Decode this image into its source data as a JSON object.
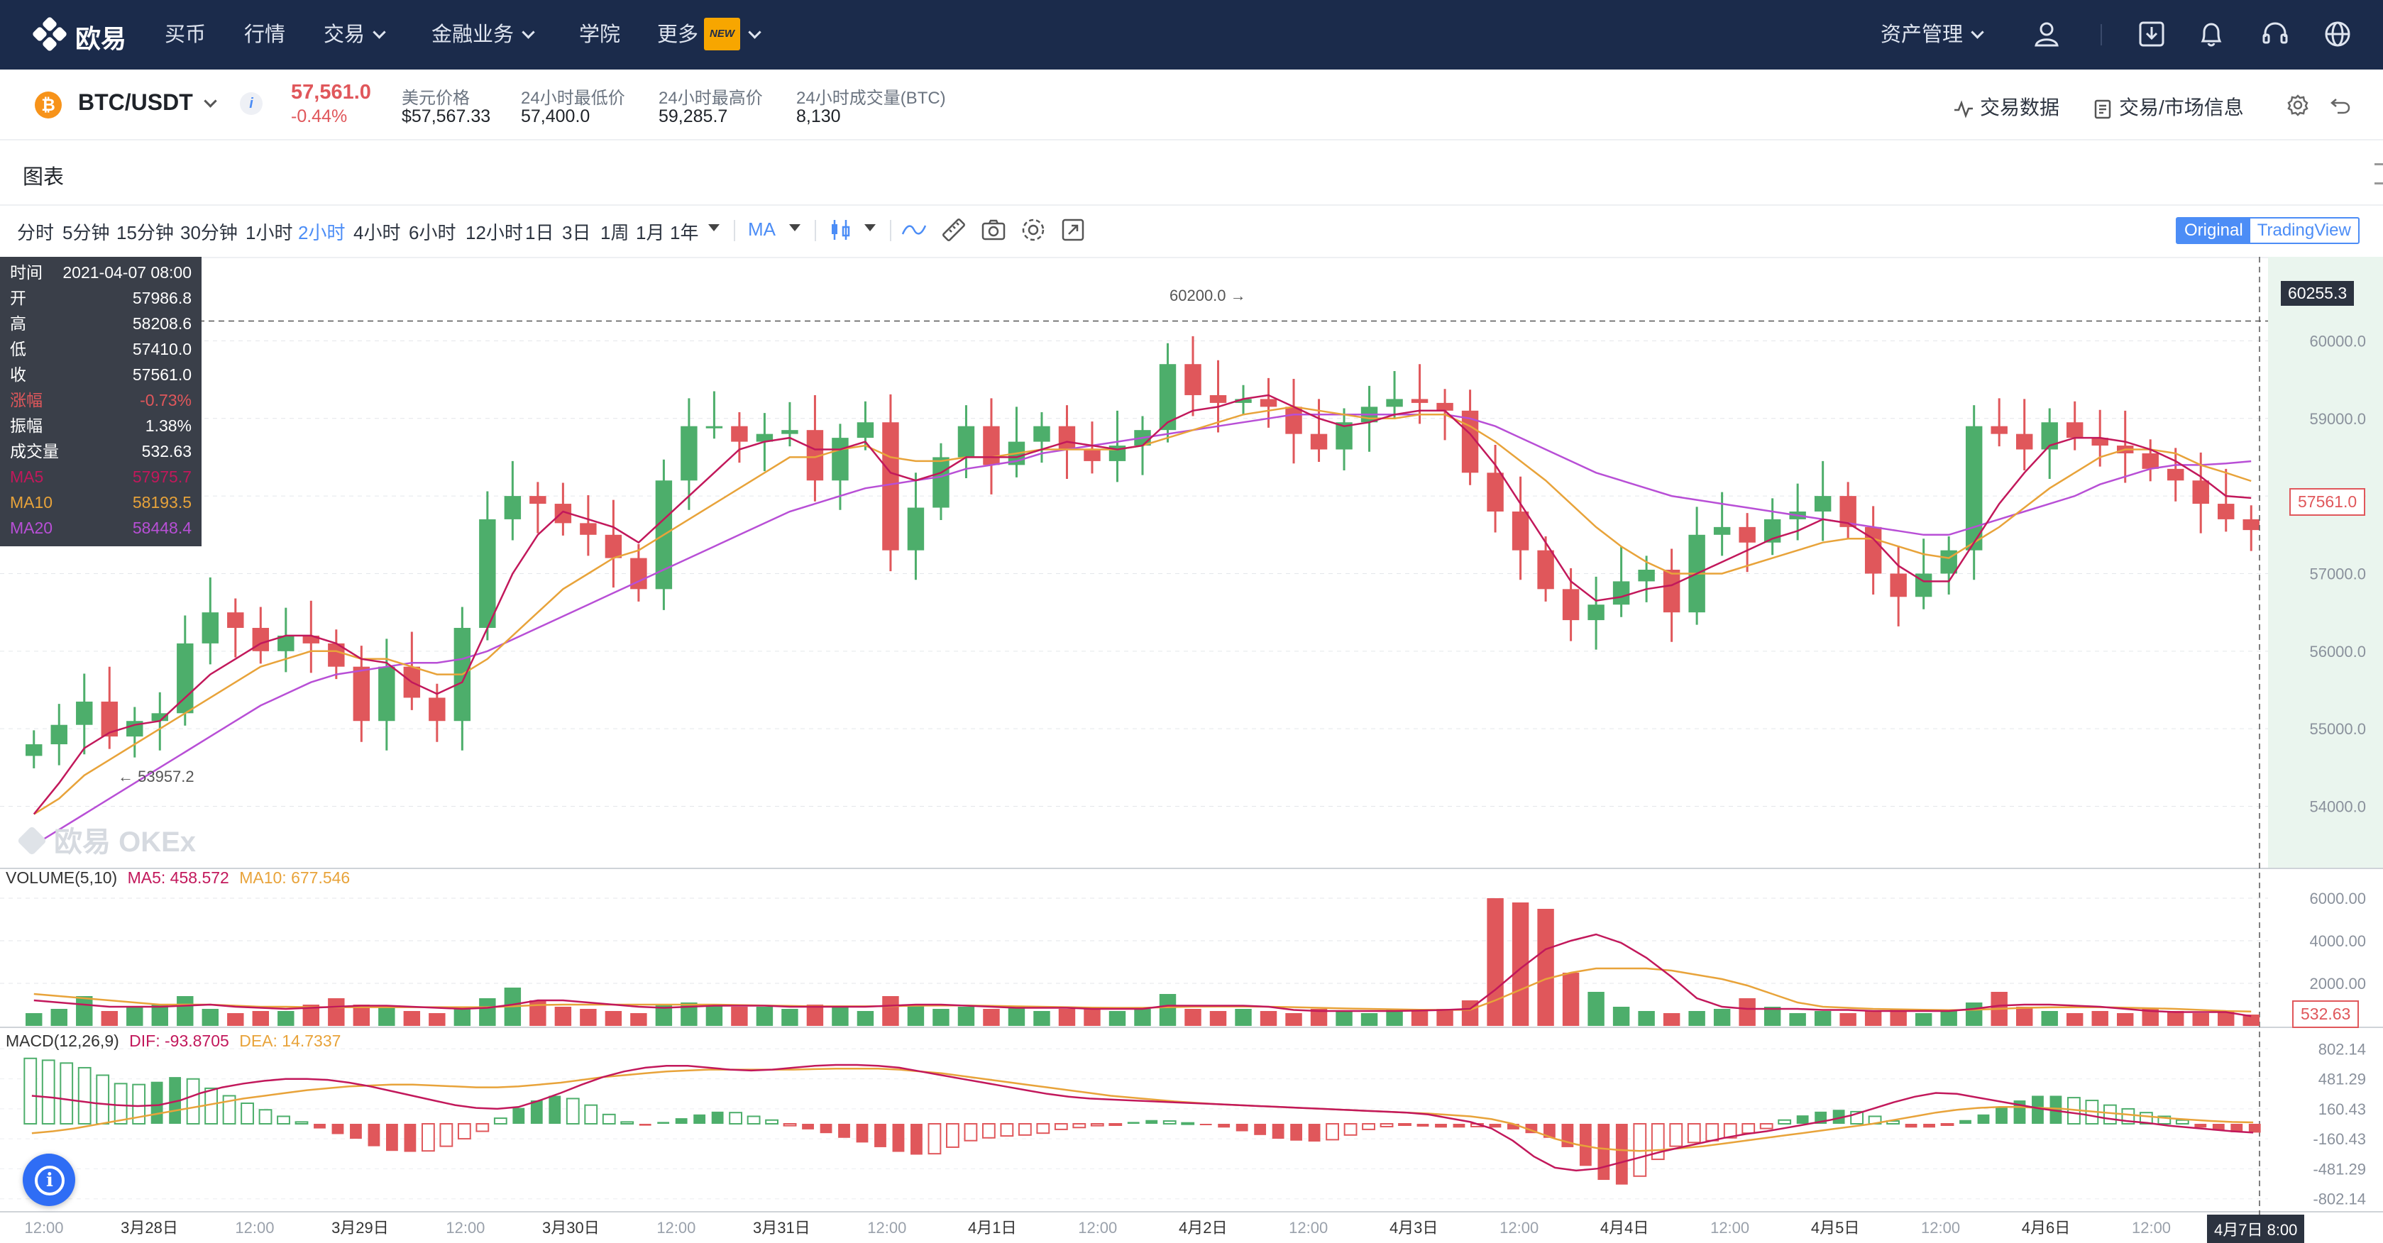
{
  "nav": {
    "logo": "欧易",
    "items": [
      "买币",
      "行情",
      "交易",
      "金融业务",
      "学院",
      "更多"
    ],
    "new_badge": "NEW",
    "asset_mgmt": "资产管理",
    "icons": [
      "user-icon",
      "download-icon",
      "bell-icon",
      "headset-icon",
      "globe-icon"
    ]
  },
  "ticker": {
    "pair": "BTC/USDT",
    "coin_icon": "bitcoin-icon",
    "price": "57,561.0",
    "change": "-0.44%",
    "usd_label": "美元价格",
    "usd_value": "$57,567.33",
    "low_label": "24小时最低价",
    "low_value": "57,400.0",
    "high_label": "24小时最高价",
    "high_value": "59,285.7",
    "vol_label": "24小时成交量(BTC)",
    "vol_value": "8,130",
    "trade_data": "交易数据",
    "market_info": "交易/市场信息"
  },
  "chart_header": {
    "title": "图表"
  },
  "toolbar": {
    "timeframes": [
      "分时",
      "5分钟",
      "15分钟",
      "30分钟",
      "1小时",
      "2小时",
      "4小时",
      "6小时",
      "12小时",
      "1日",
      "3日",
      "1周",
      "1月",
      "1年"
    ],
    "active": "2小时",
    "indicator": "MA",
    "view_original": "Original",
    "view_tv": "TradingView"
  },
  "ohlc": {
    "rows": [
      {
        "k": "时间",
        "v": "2021-04-07 08:00"
      },
      {
        "k": "开",
        "v": "57986.8"
      },
      {
        "k": "高",
        "v": "58208.6"
      },
      {
        "k": "低",
        "v": "57410.0"
      },
      {
        "k": "收",
        "v": "57561.0"
      },
      {
        "k": "涨幅",
        "v": "-0.73%"
      },
      {
        "k": "振幅",
        "v": "1.38%"
      },
      {
        "k": "成交量",
        "v": "532.63"
      },
      {
        "k": "MA5",
        "v": "57975.7"
      },
      {
        "k": "MA10",
        "v": "58193.5"
      },
      {
        "k": "MA20",
        "v": "58448.4"
      }
    ]
  },
  "annotations": {
    "high_marker": "60200.0 →",
    "low_marker": "← 53957.2",
    "watermark": "欧易 OKEx",
    "crosshair_price": "60255.3",
    "last_price": "57561.0",
    "last_volume": "532.63",
    "crosshair_time": "4月7日 8:00"
  },
  "volume_label": {
    "name": "VOLUME(5,10)",
    "ma5": "MA5: 458.572",
    "ma10": "MA10: 677.546"
  },
  "macd_label": {
    "name": "MACD(12,26,9)",
    "dif": "DIF: -93.8705",
    "dea": "DEA: 14.7337"
  },
  "colors": {
    "up": "#4dae6b",
    "down": "#e0575b",
    "ma5": "#c2185b",
    "ma10": "#e8a33a",
    "ma20": "#b84fd6",
    "nav_bg": "#1b2b4b",
    "accent": "#4c8df6"
  },
  "chart_data": [
    {
      "type": "candlestick",
      "x_ticks": [
        "12:00",
        "3月28日",
        "12:00",
        "3月29日",
        "12:00",
        "3月30日",
        "12:00",
        "3月31日",
        "12:00",
        "4月1日",
        "12:00",
        "4月2日",
        "12:00",
        "4月3日",
        "12:00",
        "4月4日",
        "12:00",
        "4月5日",
        "12:00",
        "4月6日",
        "12:00",
        "4月7日"
      ],
      "y_ticks": [
        "60000.0",
        "59000.0",
        "58000.0",
        "57000.0",
        "56000.0",
        "55000.0",
        "54000.0"
      ],
      "ylim": [
        53200,
        60900
      ],
      "close": [
        54800,
        55050,
        55350,
        54900,
        55100,
        55200,
        56100,
        56500,
        56300,
        56000,
        56200,
        56100,
        55800,
        55100,
        55800,
        55400,
        55100,
        56300,
        57700,
        58000,
        57900,
        57650,
        57500,
        57200,
        56800,
        58200,
        58900,
        58900,
        58700,
        58800,
        58850,
        58200,
        58750,
        58950,
        57300,
        57850,
        58500,
        58900,
        58400,
        58700,
        58900,
        58600,
        58450,
        58650,
        58850,
        59700,
        59300,
        59200,
        59250,
        59150,
        58800,
        58600,
        58950,
        59150,
        59250,
        59200,
        59100,
        58300,
        57800,
        57300,
        56800,
        56400,
        56600,
        56900,
        57050,
        56500,
        57500,
        57600,
        57400,
        57700,
        57800,
        58000,
        57600,
        57000,
        56700,
        57000,
        57300,
        58900,
        58800,
        58600,
        58950,
        58750,
        58650,
        58550,
        58350,
        58200,
        57900,
        57700,
        57561
      ],
      "ma5": [
        53900,
        54300,
        54750,
        54950,
        55050,
        55100,
        55400,
        55700,
        55900,
        56100,
        56200,
        56200,
        56100,
        55900,
        55850,
        55600,
        55450,
        55600,
        56300,
        57000,
        57500,
        57800,
        57700,
        57600,
        57400,
        57700,
        58000,
        58300,
        58600,
        58700,
        58750,
        58600,
        58600,
        58700,
        58300,
        58200,
        58300,
        58500,
        58500,
        58500,
        58600,
        58700,
        58650,
        58600,
        58650,
        58950,
        59100,
        59150,
        59250,
        59300,
        59150,
        59000,
        58900,
        58950,
        59050,
        59100,
        59100,
        58800,
        58400,
        57900,
        57400,
        56900,
        56650,
        56700,
        56800,
        56850,
        57000,
        57150,
        57300,
        57450,
        57550,
        57700,
        57650,
        57450,
        57100,
        56900,
        56900,
        57400,
        57900,
        58300,
        58650,
        58750,
        58750,
        58700,
        58600,
        58450,
        58250,
        58000,
        57975
      ],
      "ma10": [
        53900,
        54100,
        54400,
        54600,
        54800,
        55000,
        55200,
        55400,
        55600,
        55800,
        55900,
        56000,
        56000,
        55900,
        55900,
        55800,
        55700,
        55700,
        55900,
        56200,
        56500,
        56800,
        57000,
        57200,
        57300,
        57500,
        57700,
        57900,
        58100,
        58300,
        58500,
        58500,
        58600,
        58650,
        58500,
        58450,
        58450,
        58500,
        58500,
        58550,
        58600,
        58600,
        58600,
        58600,
        58650,
        58750,
        58850,
        58950,
        59050,
        59100,
        59150,
        59100,
        59050,
        59000,
        59000,
        59050,
        59050,
        58900,
        58700,
        58450,
        58200,
        57900,
        57600,
        57350,
        57150,
        57000,
        57000,
        57000,
        57100,
        57200,
        57300,
        57400,
        57450,
        57450,
        57350,
        57250,
        57200,
        57400,
        57600,
        57850,
        58100,
        58300,
        58500,
        58600,
        58600,
        58550,
        58400,
        58300,
        58193
      ],
      "ma20": [
        53500,
        53700,
        53900,
        54100,
        54300,
        54500,
        54700,
        54900,
        55100,
        55300,
        55450,
        55600,
        55700,
        55750,
        55800,
        55850,
        55850,
        55900,
        56000,
        56150,
        56300,
        56450,
        56600,
        56750,
        56900,
        57050,
        57200,
        57350,
        57500,
        57650,
        57800,
        57900,
        58000,
        58100,
        58150,
        58200,
        58250,
        58350,
        58400,
        58450,
        58550,
        58600,
        58650,
        58700,
        58750,
        58800,
        58850,
        58900,
        58950,
        59000,
        59050,
        59050,
        59050,
        59050,
        59050,
        59050,
        59050,
        59000,
        58900,
        58750,
        58600,
        58450,
        58300,
        58200,
        58100,
        58000,
        57950,
        57900,
        57850,
        57800,
        57750,
        57700,
        57650,
        57600,
        57550,
        57500,
        57500,
        57600,
        57700,
        57800,
        57900,
        58000,
        58150,
        58250,
        58350,
        58400,
        58400,
        58420,
        58448
      ]
    },
    {
      "type": "bar",
      "name": "VOLUME",
      "y_ticks": [
        "6000.00",
        "4000.00",
        "2000.00"
      ],
      "ylim": [
        0,
        6600
      ],
      "values": [
        600,
        800,
        1400,
        700,
        900,
        1000,
        1400,
        800,
        600,
        700,
        700,
        1000,
        1300,
        1000,
        900,
        700,
        600,
        900,
        1300,
        1800,
        1200,
        900,
        800,
        700,
        600,
        1000,
        1100,
        1000,
        900,
        900,
        800,
        1000,
        900,
        700,
        1400,
        1000,
        800,
        900,
        800,
        900,
        700,
        800,
        800,
        700,
        800,
        1500,
        800,
        700,
        800,
        700,
        600,
        800,
        700,
        600,
        800,
        700,
        800,
        1200,
        6000,
        5800,
        5500,
        2500,
        1600,
        900,
        700,
        600,
        700,
        800,
        1300,
        900,
        600,
        700,
        600,
        700,
        800,
        600,
        700,
        1100,
        1600,
        900,
        700,
        600,
        700,
        600,
        800,
        700,
        600,
        700,
        533
      ],
      "ma5_values": [
        1200,
        1100,
        1000,
        900,
        900,
        900,
        950,
        1000,
        900,
        850,
        800,
        850,
        900,
        950,
        950,
        900,
        850,
        800,
        850,
        1000,
        1200,
        1200,
        1100,
        1000,
        900,
        850,
        900,
        950,
        950,
        950,
        900,
        900,
        900,
        900,
        950,
        1000,
        1000,
        950,
        900,
        850,
        850,
        850,
        800,
        800,
        800,
        950,
        950,
        950,
        950,
        900,
        750,
        700,
        700,
        700,
        700,
        720,
        750,
        800,
        1700,
        2700,
        3600,
        4000,
        4300,
        3900,
        3200,
        2300,
        1300,
        900,
        800,
        800,
        800,
        750,
        750,
        700,
        700,
        700,
        700,
        800,
        950,
        1000,
        1000,
        950,
        900,
        800,
        700,
        650,
        650,
        650,
        458
      ],
      "ma10_values": [
        1500,
        1400,
        1300,
        1200,
        1100,
        1000,
        1000,
        1000,
        950,
        900,
        900,
        880,
        880,
        880,
        880,
        880,
        880,
        880,
        880,
        920,
        980,
        1000,
        1000,
        1000,
        1000,
        1000,
        1000,
        1000,
        980,
        960,
        940,
        920,
        920,
        920,
        930,
        950,
        960,
        960,
        940,
        920,
        900,
        880,
        860,
        850,
        850,
        880,
        900,
        910,
        910,
        900,
        880,
        850,
        820,
        800,
        780,
        760,
        750,
        760,
        1200,
        1700,
        2200,
        2500,
        2700,
        2700,
        2700,
        2600,
        2400,
        2200,
        1900,
        1500,
        1100,
        900,
        850,
        800,
        780,
        760,
        740,
        760,
        800,
        850,
        870,
        880,
        880,
        860,
        830,
        800,
        750,
        700,
        677
      ]
    },
    {
      "type": "bar",
      "name": "MACD",
      "y_ticks": [
        "802.14",
        "481.29",
        "160.43",
        "-160.43",
        "-481.29",
        "-802.14"
      ],
      "ylim": [
        -850,
        850
      ],
      "hist": [
        700,
        680,
        650,
        600,
        520,
        430,
        420,
        450,
        500,
        480,
        380,
        300,
        220,
        150,
        80,
        20,
        -50,
        -110,
        -160,
        -240,
        -290,
        -300,
        -290,
        -240,
        -160,
        -80,
        60,
        170,
        250,
        300,
        270,
        200,
        100,
        20,
        -20,
        20,
        60,
        100,
        130,
        120,
        80,
        40,
        -20,
        -60,
        -100,
        -150,
        -200,
        -250,
        -300,
        -330,
        -320,
        -250,
        -180,
        -150,
        -130,
        -120,
        -100,
        -60,
        -40,
        -20,
        -10,
        20,
        40,
        30,
        10,
        -10,
        -40,
        -80,
        -120,
        -160,
        -180,
        -190,
        -170,
        -120,
        -60,
        -30,
        -10,
        -30,
        -40,
        -40,
        -30,
        -40,
        -60,
        -100,
        -150,
        -250,
        -450,
        -600,
        -650,
        -560,
        -380,
        -240,
        -200,
        -180,
        -150,
        -100,
        -50,
        40,
        90,
        130,
        150,
        130,
        80,
        30,
        -40,
        -40,
        -10,
        40,
        100,
        180,
        250,
        300,
        300,
        280,
        250,
        200,
        160,
        120,
        80,
        40,
        -40,
        -70,
        -90,
        -94
      ],
      "dif": [
        300,
        280,
        250,
        220,
        200,
        190,
        200,
        250,
        330,
        390,
        430,
        460,
        480,
        480,
        470,
        440,
        400,
        350,
        300,
        250,
        200,
        170,
        160,
        180,
        250,
        330,
        420,
        500,
        560,
        600,
        620,
        620,
        600,
        580,
        570,
        580,
        600,
        620,
        630,
        630,
        620,
        600,
        560,
        520,
        480,
        440,
        400,
        360,
        320,
        290,
        270,
        260,
        250,
        240,
        230,
        220,
        210,
        200,
        190,
        180,
        170,
        160,
        150,
        140,
        130,
        120,
        100,
        60,
        20,
        -50,
        -180,
        -350,
        -470,
        -500,
        -480,
        -420,
        -360,
        -300,
        -250,
        -200,
        -150,
        -110,
        -80,
        -40,
        0,
        40,
        90,
        160,
        230,
        290,
        330,
        320,
        280,
        240,
        200,
        160,
        130,
        100,
        60,
        30,
        10,
        -20,
        -40,
        -60,
        -80,
        -94
      ],
      "dea": [
        -100,
        -80,
        -50,
        -10,
        30,
        70,
        110,
        150,
        190,
        230,
        270,
        300,
        330,
        360,
        380,
        400,
        410,
        420,
        420,
        410,
        400,
        390,
        390,
        400,
        420,
        440,
        470,
        500,
        520,
        540,
        560,
        570,
        580,
        580,
        580,
        580,
        580,
        585,
        590,
        590,
        590,
        580,
        560,
        540,
        510,
        480,
        450,
        420,
        390,
        360,
        330,
        300,
        280,
        260,
        240,
        225,
        210,
        200,
        190,
        180,
        170,
        160,
        150,
        140,
        130,
        120,
        110,
        95,
        80,
        50,
        0,
        -80,
        -160,
        -220,
        -260,
        -280,
        -290,
        -280,
        -260,
        -240,
        -210,
        -180,
        -150,
        -120,
        -90,
        -60,
        -30,
        0,
        40,
        80,
        120,
        150,
        170,
        180,
        180,
        170,
        160,
        140,
        120,
        100,
        80,
        60,
        45,
        30,
        20,
        15
      ]
    }
  ]
}
